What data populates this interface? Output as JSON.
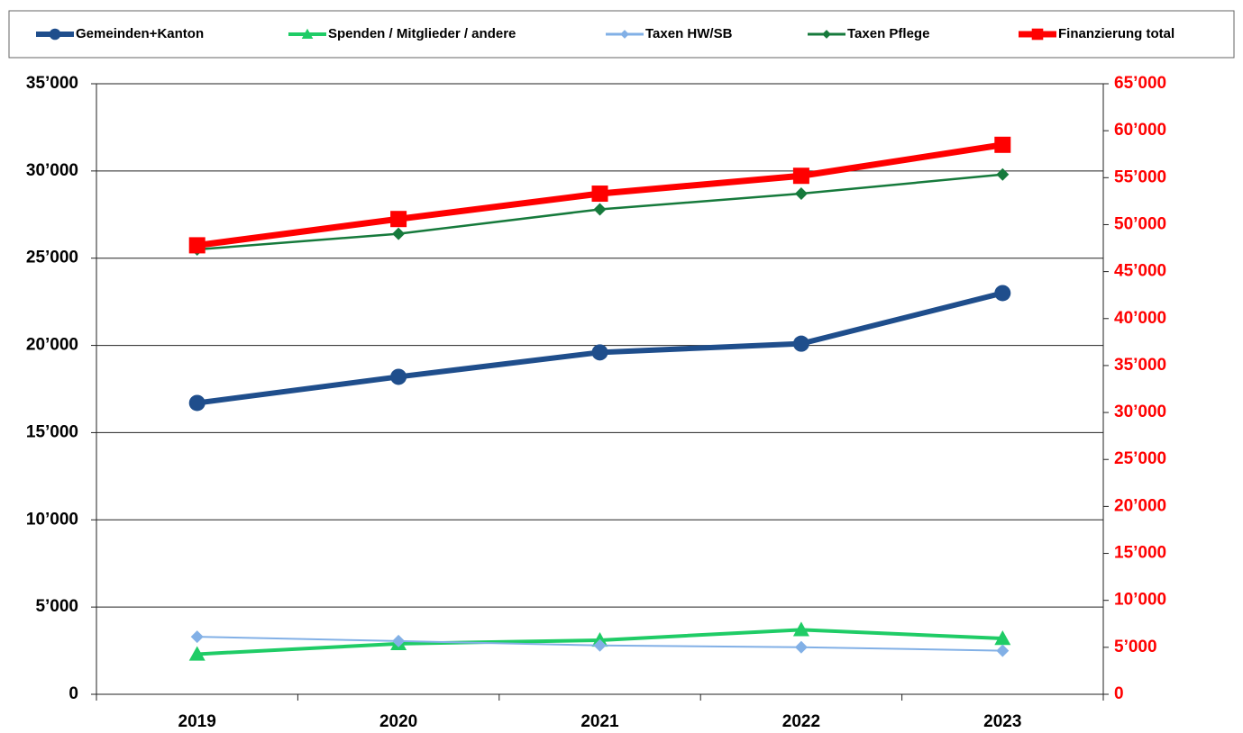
{
  "chart_data": {
    "type": "line",
    "categories": [
      "2019",
      "2020",
      "2021",
      "2022",
      "2023"
    ],
    "series": [
      {
        "name": "Gemeinden+Kanton",
        "color": "#1f4e8c",
        "marker": "circle",
        "values": [
          16700,
          18200,
          19600,
          20100,
          23000
        ]
      },
      {
        "name": "Spenden / Mitglieder / andere",
        "color": "#1fcc66",
        "marker": "triangle",
        "values": [
          2300,
          2900,
          3100,
          3700,
          3200
        ]
      },
      {
        "name": "Taxen HW/SB",
        "color": "#82b0e6",
        "marker": "diamond",
        "values": [
          3300,
          3050,
          2800,
          2700,
          2500
        ]
      },
      {
        "name": "Taxen Pflege",
        "color": "#167a3c",
        "marker": "diamond",
        "values": [
          25500,
          26400,
          27800,
          28700,
          29800
        ]
      },
      {
        "name": "Finanzierung total",
        "color": "#ff0000",
        "marker": "square",
        "axis": "y2",
        "values": [
          47800,
          50600,
          53300,
          55200,
          58500
        ]
      }
    ],
    "ylim": [
      0,
      35000
    ],
    "yticks": [
      0,
      {
        "value": 5000,
        "label": "5’000"
      },
      {
        "value": 10000,
        "label": "10’000"
      },
      {
        "value": 15000,
        "label": "15’000"
      },
      {
        "value": 20000,
        "label": "20’000"
      },
      {
        "value": 25000,
        "label": "25’000"
      },
      {
        "value": 30000,
        "label": "30’000"
      },
      {
        "value": 35000,
        "label": "35’000"
      }
    ],
    "y2lim": [
      0,
      65000
    ],
    "y2ticks": [
      0,
      {
        "value": 5000,
        "label": "5’000"
      },
      {
        "value": 10000,
        "label": "10’000"
      },
      {
        "value": 15000,
        "label": "15’000"
      },
      {
        "value": 20000,
        "label": "20’000"
      },
      {
        "value": 25000,
        "label": "25’000"
      },
      {
        "value": 30000,
        "label": "30’000"
      },
      {
        "value": 35000,
        "label": "35’000"
      },
      {
        "value": 40000,
        "label": "40’000"
      },
      {
        "value": 45000,
        "label": "45’000"
      },
      {
        "value": 50000,
        "label": "50’000"
      },
      {
        "value": 55000,
        "label": "55’000"
      },
      {
        "value": 60000,
        "label": "60’000"
      },
      {
        "value": 65000,
        "label": "65’000"
      }
    ],
    "y2color": "#ff0000",
    "grid": true,
    "legend": "top"
  }
}
